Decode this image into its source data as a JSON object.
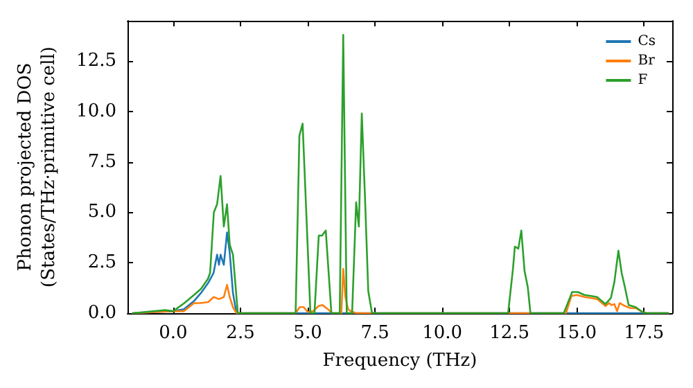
{
  "chart_data": {
    "type": "line",
    "xlabel": "Frequency (THz)",
    "ylabel": "Phonon projected DOS\n(States/THz·primitive cell)",
    "xlim": [
      -1.7,
      18.55
    ],
    "ylim": [
      0,
      14.5
    ],
    "xticks": [
      {
        "value": 0,
        "label": "0.0"
      },
      2.5,
      {
        "value": 5,
        "label": "5.0"
      },
      7.5,
      {
        "value": 10,
        "label": "10.0"
      },
      12.5,
      {
        "value": 15,
        "label": "15.0"
      },
      17.5
    ],
    "yticks": [
      {
        "value": 0,
        "label": "0.0"
      },
      2.5,
      {
        "value": 5,
        "label": "5.0"
      },
      7.5,
      {
        "value": 10,
        "label": "10.0"
      },
      12.5
    ],
    "legend": "top right",
    "grid": false,
    "marker": "none",
    "line_style": "solid",
    "series": [
      {
        "name": "Cs",
        "color": "#1f77b4",
        "x": [
          -1.5,
          0,
          0.4,
          0.77,
          1.03,
          1.3,
          1.5,
          1.63,
          1.7,
          1.76,
          1.88,
          2.0,
          2.1,
          2.22,
          2.35,
          4.5,
          18.4
        ],
        "values": [
          0,
          0.1,
          0.2,
          0.6,
          1.0,
          1.5,
          2.0,
          2.9,
          2.4,
          2.9,
          2.4,
          4.0,
          3.0,
          1.0,
          0,
          0,
          0
        ]
      },
      {
        "name": "Br",
        "color": "#ff7f0e",
        "x": [
          -1.5,
          0,
          0.4,
          0.77,
          1.0,
          1.3,
          1.5,
          1.7,
          1.88,
          2.0,
          2.1,
          2.22,
          2.35,
          4.55,
          4.7,
          4.85,
          5.0,
          5.2,
          5.4,
          5.55,
          5.75,
          5.9,
          6.25,
          6.32,
          6.4,
          6.5,
          6.6,
          6.8,
          14.6,
          14.8,
          15.0,
          15.3,
          15.55,
          15.76,
          16.07,
          16.2,
          16.3,
          16.4,
          16.5,
          16.6,
          16.8,
          17.0,
          17.2,
          17.45,
          17.6,
          18.4
        ],
        "values": [
          0,
          0.1,
          0.1,
          0.5,
          0.5,
          0.55,
          0.8,
          0.7,
          0.8,
          1.4,
          0.8,
          0.3,
          0,
          0,
          0.3,
          0.3,
          0.05,
          0.1,
          0.35,
          0.4,
          0.2,
          0,
          0,
          2.2,
          0.8,
          0.2,
          0.1,
          0,
          0,
          0.85,
          0.9,
          0.8,
          0.75,
          0.7,
          0.35,
          0.5,
          0.4,
          0.45,
          0.1,
          0.5,
          0.35,
          0.25,
          0.25,
          0.05,
          0,
          0
        ]
      },
      {
        "name": "F",
        "color": "#2ca02c",
        "x": [
          -1.5,
          -0.3,
          0,
          0.41,
          0.77,
          1.03,
          1.29,
          1.37,
          1.51,
          1.63,
          1.76,
          1.88,
          2.0,
          2.1,
          2.22,
          2.4,
          4.55,
          4.69,
          4.81,
          5.1,
          5.25,
          5.41,
          5.53,
          5.67,
          5.88,
          6.19,
          6.32,
          6.45,
          6.65,
          6.8,
          6.9,
          7.01,
          7.13,
          7.25,
          7.39,
          12.45,
          12.63,
          12.7,
          12.83,
          12.94,
          13.06,
          13.18,
          13.28,
          14.52,
          14.83,
          15.04,
          15.29,
          15.55,
          15.76,
          16.07,
          16.27,
          16.4,
          16.55,
          16.67,
          16.79,
          16.93,
          17.19,
          17.45,
          17.6,
          18.4
        ],
        "values": [
          0,
          0.15,
          0.1,
          0.5,
          0.9,
          1.2,
          1.7,
          2.0,
          5.0,
          5.4,
          6.8,
          4.3,
          5.4,
          3.4,
          2.9,
          0,
          0,
          8.8,
          9.4,
          0,
          0,
          3.85,
          3.85,
          4.1,
          0,
          0,
          13.8,
          0,
          0,
          5.5,
          4.3,
          9.9,
          5.7,
          1.1,
          0,
          0,
          2.2,
          3.3,
          3.2,
          4.1,
          2.1,
          1.3,
          0,
          0,
          1.05,
          1.05,
          0.9,
          0.85,
          0.8,
          0.45,
          0.75,
          1.55,
          3.1,
          2.0,
          1.3,
          0.4,
          0.3,
          0.05,
          0,
          0
        ]
      }
    ]
  }
}
